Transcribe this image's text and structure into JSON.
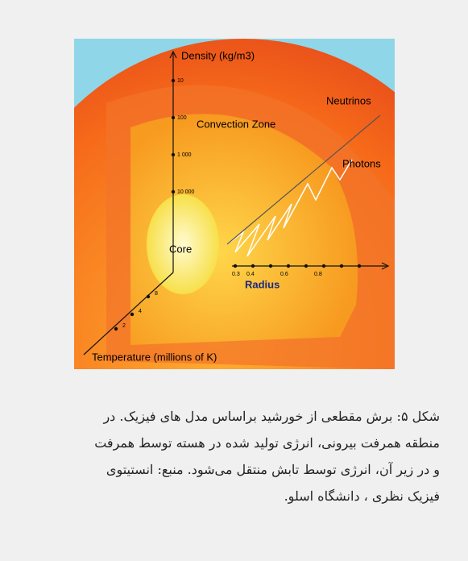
{
  "figure": {
    "labels": {
      "density_axis": "Density (kg/m3)",
      "neutrinos": "Neutrinos",
      "convection_zone": "Convection Zone",
      "photons": "Photons",
      "core": "Core",
      "radius_axis": "Radius",
      "temperature_axis": "Temperature (millions of K)"
    },
    "density_ticks": [
      "10",
      "100",
      "1 000",
      "10 000"
    ],
    "radius_ticks": [
      "0.3",
      "0.4",
      "0.6",
      "0.8"
    ],
    "temperature_ticks": [
      "2",
      "4",
      "8"
    ]
  },
  "caption": {
    "lines": [
      "شکل ۵: برش مقطعی از خورشید براساس مدل های فیزیک. در",
      "منطقه همرفت بیرونی، انرژی تولید شده در هسته توسط همرفت",
      "و در زیر آن، انرژی توسط تابش منتقل می‌شود. منبع: انستیتوی",
      "فیزیک نظری ، دانشگاه اسلو."
    ]
  }
}
